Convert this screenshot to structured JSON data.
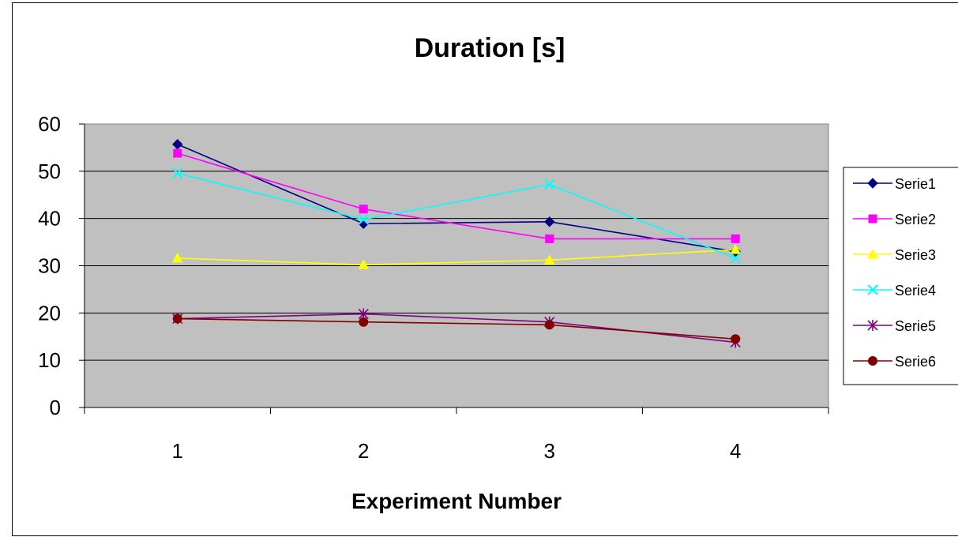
{
  "chart_data": {
    "type": "line",
    "title": "Duration [s]",
    "xlabel": "Experiment Number",
    "ylabel": "",
    "categories": [
      "1",
      "2",
      "3",
      "4"
    ],
    "ylim": [
      0,
      60
    ],
    "yticks": [
      0,
      10,
      20,
      30,
      40,
      50,
      60
    ],
    "grid": true,
    "plot_background": "#C0C0C0",
    "legend_position": "right",
    "series": [
      {
        "name": "Serie1",
        "values": [
          55.7,
          38.9,
          39.3,
          33.0
        ],
        "color": "#000080",
        "marker": "diamond"
      },
      {
        "name": "Serie2",
        "values": [
          53.8,
          42.0,
          35.7,
          35.7
        ],
        "color": "#FF00FF",
        "marker": "square"
      },
      {
        "name": "Serie3",
        "values": [
          31.6,
          30.2,
          31.2,
          33.4
        ],
        "color": "#FFFF00",
        "marker": "triangle"
      },
      {
        "name": "Serie4",
        "values": [
          49.6,
          39.8,
          47.2,
          31.6
        ],
        "color": "#00FFFF",
        "marker": "x"
      },
      {
        "name": "Serie5",
        "values": [
          18.8,
          19.8,
          18.1,
          13.8
        ],
        "color": "#800080",
        "marker": "star"
      },
      {
        "name": "Serie6",
        "values": [
          18.8,
          18.1,
          17.5,
          14.5
        ],
        "color": "#800000",
        "marker": "circle"
      }
    ]
  }
}
